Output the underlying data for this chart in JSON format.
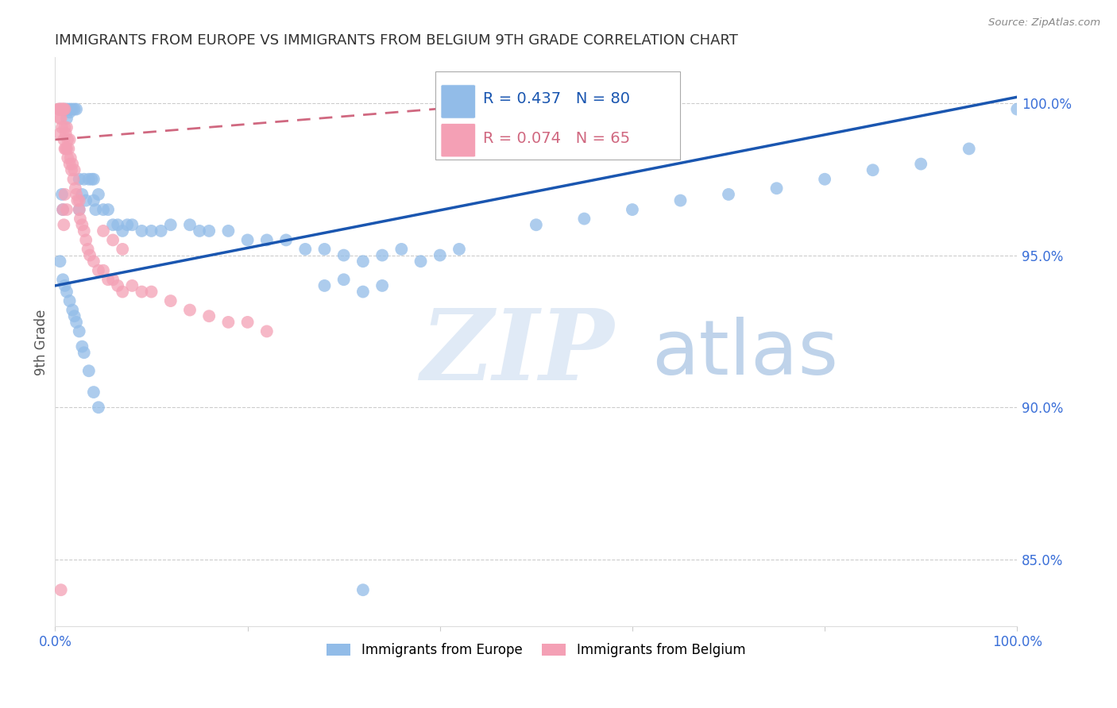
{
  "title": "IMMIGRANTS FROM EUROPE VS IMMIGRANTS FROM BELGIUM 9TH GRADE CORRELATION CHART",
  "source": "Source: ZipAtlas.com",
  "ylabel": "9th Grade",
  "watermark_zip": "ZIP",
  "watermark_atlas": "atlas",
  "legend_blue_r": "R = 0.437",
  "legend_blue_n": "N = 80",
  "legend_pink_r": "R = 0.074",
  "legend_pink_n": "N = 65",
  "blue_color": "#92bce8",
  "pink_color": "#f4a0b5",
  "blue_line_color": "#1a56b0",
  "pink_line_color": "#d06880",
  "grid_color": "#cccccc",
  "axis_label_color": "#3a6fd8",
  "ylim_min": 0.828,
  "ylim_max": 1.015,
  "xlim_min": 0.0,
  "xlim_max": 1.0,
  "blue_trend_x0": 0.0,
  "blue_trend_y0": 0.94,
  "blue_trend_x1": 1.0,
  "blue_trend_y1": 1.002,
  "pink_trend_x0": 0.0,
  "pink_trend_y0": 0.988,
  "pink_trend_x1": 0.55,
  "pink_trend_y1": 1.002,
  "yticks": [
    0.85,
    0.9,
    0.95,
    1.0
  ],
  "ytick_labels": [
    "85.0%",
    "90.0%",
    "95.0%",
    "100.0%"
  ],
  "xtick_positions": [
    0.0,
    0.2,
    0.4,
    0.6,
    0.8,
    1.0
  ],
  "xtick_labels": [
    "0.0%",
    "",
    "",
    "",
    "",
    "100.0%"
  ],
  "blue_scatter_x": [
    0.005,
    0.007,
    0.008,
    0.01,
    0.012,
    0.012,
    0.014,
    0.015,
    0.016,
    0.018,
    0.02,
    0.022,
    0.025,
    0.025,
    0.028,
    0.03,
    0.032,
    0.035,
    0.038,
    0.04,
    0.04,
    0.042,
    0.045,
    0.05,
    0.055,
    0.06,
    0.065,
    0.07,
    0.075,
    0.08,
    0.09,
    0.1,
    0.11,
    0.12,
    0.14,
    0.15,
    0.16,
    0.18,
    0.2,
    0.22,
    0.24,
    0.26,
    0.28,
    0.3,
    0.32,
    0.34,
    0.36,
    0.38,
    0.4,
    0.42,
    0.28,
    0.3,
    0.32,
    0.34,
    0.5,
    0.55,
    0.6,
    0.65,
    0.7,
    0.75,
    0.8,
    0.85,
    0.9,
    0.95,
    1.0,
    0.005,
    0.008,
    0.01,
    0.012,
    0.015,
    0.018,
    0.02,
    0.022,
    0.025,
    0.028,
    0.03,
    0.035,
    0.04,
    0.32,
    0.045
  ],
  "blue_scatter_y": [
    0.998,
    0.97,
    0.965,
    0.998,
    0.998,
    0.995,
    0.998,
    0.997,
    0.998,
    0.998,
    0.998,
    0.998,
    0.975,
    0.965,
    0.97,
    0.975,
    0.968,
    0.975,
    0.975,
    0.975,
    0.968,
    0.965,
    0.97,
    0.965,
    0.965,
    0.96,
    0.96,
    0.958,
    0.96,
    0.96,
    0.958,
    0.958,
    0.958,
    0.96,
    0.96,
    0.958,
    0.958,
    0.958,
    0.955,
    0.955,
    0.955,
    0.952,
    0.952,
    0.95,
    0.948,
    0.95,
    0.952,
    0.948,
    0.95,
    0.952,
    0.94,
    0.942,
    0.938,
    0.94,
    0.96,
    0.962,
    0.965,
    0.968,
    0.97,
    0.972,
    0.975,
    0.978,
    0.98,
    0.985,
    0.998,
    0.948,
    0.942,
    0.94,
    0.938,
    0.935,
    0.932,
    0.93,
    0.928,
    0.925,
    0.92,
    0.918,
    0.912,
    0.905,
    0.84,
    0.9
  ],
  "pink_scatter_x": [
    0.003,
    0.004,
    0.005,
    0.005,
    0.005,
    0.006,
    0.006,
    0.007,
    0.007,
    0.008,
    0.008,
    0.009,
    0.009,
    0.01,
    0.01,
    0.01,
    0.011,
    0.011,
    0.012,
    0.012,
    0.013,
    0.013,
    0.014,
    0.015,
    0.015,
    0.016,
    0.017,
    0.018,
    0.019,
    0.02,
    0.021,
    0.022,
    0.023,
    0.025,
    0.026,
    0.028,
    0.03,
    0.032,
    0.034,
    0.036,
    0.04,
    0.045,
    0.05,
    0.055,
    0.06,
    0.065,
    0.07,
    0.08,
    0.09,
    0.1,
    0.12,
    0.14,
    0.16,
    0.18,
    0.2,
    0.22,
    0.05,
    0.06,
    0.07,
    0.025,
    0.008,
    0.009,
    0.01,
    0.012,
    0.006
  ],
  "pink_scatter_y": [
    0.998,
    0.998,
    0.998,
    0.995,
    0.99,
    0.998,
    0.995,
    0.998,
    0.992,
    0.998,
    0.998,
    0.998,
    0.988,
    0.998,
    0.992,
    0.985,
    0.99,
    0.985,
    0.992,
    0.985,
    0.988,
    0.982,
    0.985,
    0.988,
    0.98,
    0.982,
    0.978,
    0.98,
    0.975,
    0.978,
    0.972,
    0.97,
    0.968,
    0.965,
    0.962,
    0.96,
    0.958,
    0.955,
    0.952,
    0.95,
    0.948,
    0.945,
    0.945,
    0.942,
    0.942,
    0.94,
    0.938,
    0.94,
    0.938,
    0.938,
    0.935,
    0.932,
    0.93,
    0.928,
    0.928,
    0.925,
    0.958,
    0.955,
    0.952,
    0.968,
    0.965,
    0.96,
    0.97,
    0.965,
    0.84
  ]
}
